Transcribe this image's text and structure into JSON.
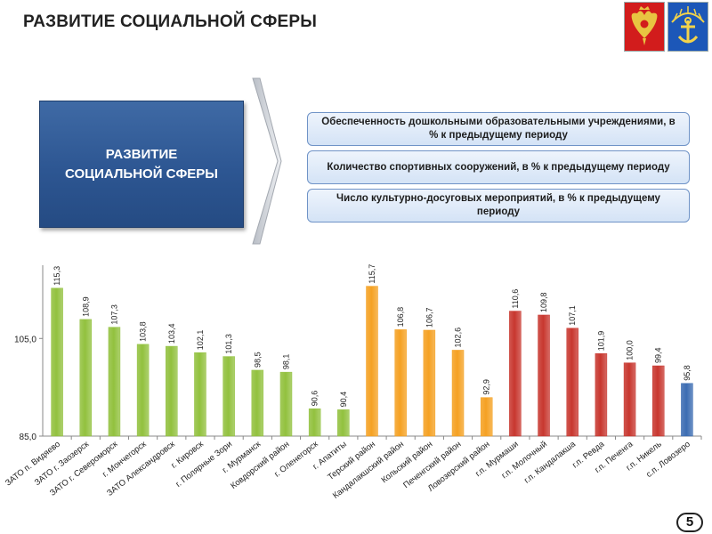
{
  "header": {
    "title": "РАЗВИТИЕ СОЦИАЛЬНОЙ СФЕРЫ"
  },
  "emblems": [
    "russia-coat-of-arms-icon",
    "murmansk-oblast-coat-of-arms-icon"
  ],
  "left_box": {
    "line1": "РАЗВИТИЕ",
    "line2": "СОЦИАЛЬНОЙ СФЕРЫ"
  },
  "topics": [
    "Обеспеченность дошкольными образовательными учреждениями, в % к предыдущему периоду",
    "Количество спортивных сооружений, в % к предыдущему периоду",
    "Число культурно-досуговых мероприятий, в % к предыдущему периоду"
  ],
  "page_number": "5",
  "colors": {
    "green": "#92c13e",
    "orange": "#f5a122",
    "red": "#c8372f",
    "blue": "#3b6cb2",
    "box_blue": "#2f5a96"
  },
  "chart_data": {
    "type": "bar",
    "ylim": [
      85.0,
      120.0
    ],
    "yticks": [
      85.0,
      105.0
    ],
    "ytick_labels": [
      "85,0",
      "105,0"
    ],
    "categories": [
      "ЗАТО п. Видяево",
      "ЗАТО г. Заозерск",
      "ЗАТО г. Североморск",
      "г. Мончегорск",
      "ЗАТО Александровск",
      "г. Кировск",
      "г. Полярные Зори",
      "г. Мурманск",
      "Ковдорский район",
      "г. Оленегорск",
      "г. Апатиты",
      "Терский район",
      "Кандалакшский район",
      "Кольский район",
      "Печенгский район",
      "Ловозерский район",
      "г.п. Мурмаши",
      "г.п. Молочный",
      "г.п. Кандалакша",
      "г.п. Ревда",
      "г.п. Печенга",
      "г.п. Никель",
      "с.п. Ловозеро"
    ],
    "values": [
      115.3,
      108.9,
      107.3,
      103.8,
      103.4,
      102.1,
      101.3,
      98.5,
      98.1,
      90.6,
      90.4,
      115.7,
      106.8,
      106.7,
      102.6,
      92.9,
      110.6,
      109.8,
      107.1,
      101.9,
      100.0,
      99.4,
      95.8
    ],
    "value_labels": [
      "115,3",
      "108,9",
      "107,3",
      "103,8",
      "103,4",
      "102,1",
      "101,3",
      "98,5",
      "98,1",
      "90,6",
      "90,4",
      "115,7",
      "106,8",
      "106,7",
      "102,6",
      "92,9",
      "110,6",
      "109,8",
      "107,1",
      "101,9",
      "100,0",
      "99,4",
      "95,8"
    ],
    "bar_colors": [
      "green",
      "green",
      "green",
      "green",
      "green",
      "green",
      "green",
      "green",
      "green",
      "green",
      "green",
      "orange",
      "orange",
      "orange",
      "orange",
      "orange",
      "red",
      "red",
      "red",
      "red",
      "red",
      "red",
      "blue"
    ]
  }
}
